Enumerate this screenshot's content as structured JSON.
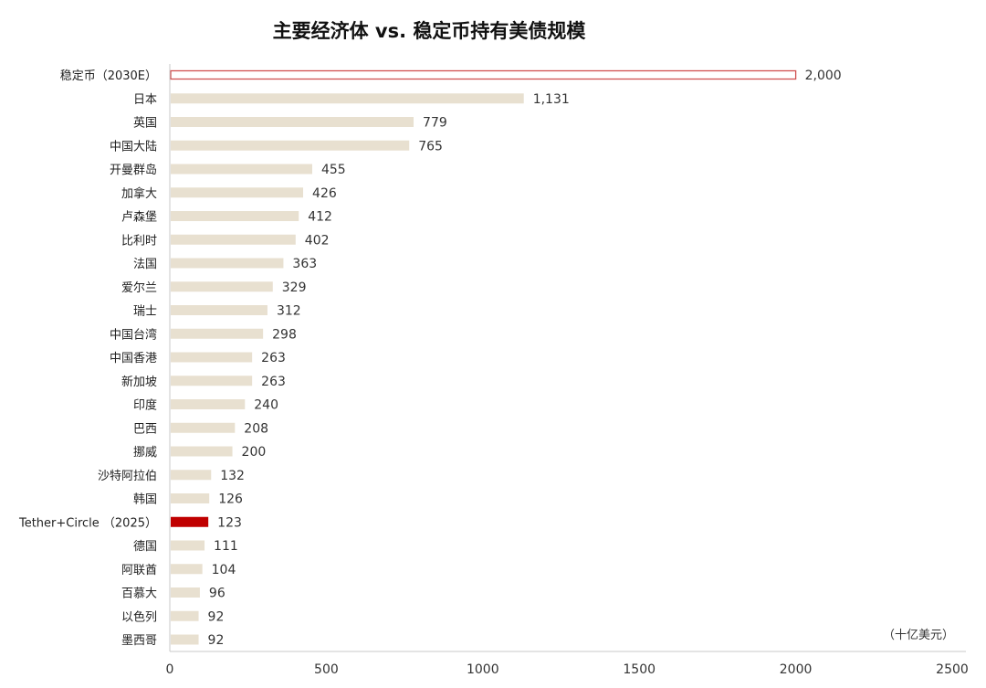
{
  "chart_data": {
    "type": "bar",
    "orientation": "horizontal",
    "title": "主要经济体 vs. 稳定币持有美债规模",
    "unit_label": "（十亿美元）",
    "categories": [
      "稳定币（2030E）",
      "日本",
      "英国",
      "中国大陆",
      "开曼群岛",
      "加拿大",
      "卢森堡",
      "比利时",
      "法国",
      "爱尔兰",
      "瑞士",
      "中国台湾",
      "中国香港",
      "新加坡",
      "印度",
      "巴西",
      "挪威",
      "沙特阿拉伯",
      "韩国",
      "Tether+Circle （2025）",
      "德国",
      "阿联酋",
      "百慕大",
      "以色列",
      "墨西哥"
    ],
    "values": [
      2000,
      1131,
      779,
      765,
      455,
      426,
      412,
      402,
      363,
      329,
      312,
      298,
      263,
      263,
      240,
      208,
      200,
      132,
      126,
      123,
      111,
      104,
      96,
      92,
      92
    ],
    "value_labels": [
      "2,000",
      "1,131",
      "779",
      "765",
      "455",
      "426",
      "412",
      "402",
      "363",
      "329",
      "312",
      "298",
      "263",
      "263",
      "240",
      "208",
      "200",
      "132",
      "126",
      "123",
      "111",
      "104",
      "96",
      "92",
      "92"
    ],
    "xlim": [
      0,
      2500
    ],
    "xticks": [
      0,
      500,
      1000,
      1500,
      2000,
      2500
    ],
    "grid": false,
    "legend": "none",
    "colors": {
      "default": "#e8e0d0",
      "highlight": "#c00000",
      "projection_outline": "#d05050"
    },
    "bar_styles": [
      "outline",
      "fill",
      "fill",
      "fill",
      "fill",
      "fill",
      "fill",
      "fill",
      "fill",
      "fill",
      "fill",
      "fill",
      "fill",
      "fill",
      "fill",
      "fill",
      "fill",
      "fill",
      "fill",
      "highlight",
      "fill",
      "fill",
      "fill",
      "fill",
      "fill"
    ]
  }
}
